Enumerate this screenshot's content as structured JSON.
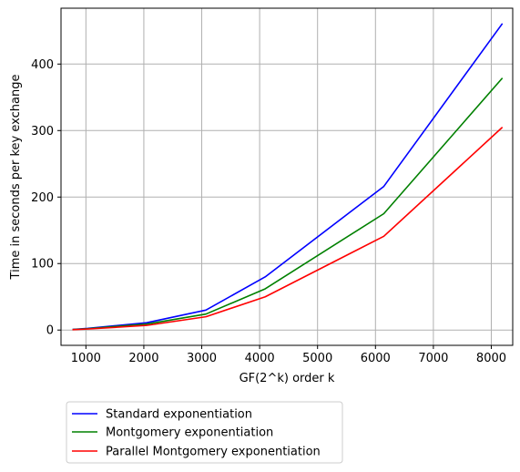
{
  "chart_data": {
    "type": "line",
    "title": "",
    "xlabel": "GF(2^k) order k",
    "ylabel": "Time in seconds per key exchange",
    "xlim": [
      570,
      8370
    ],
    "ylim": [
      -23,
      484
    ],
    "xticks": [
      1000,
      2000,
      3000,
      4000,
      5000,
      6000,
      7000,
      8000
    ],
    "yticks": [
      0,
      100,
      200,
      300,
      400
    ],
    "grid": true,
    "legend_placement": "below-left",
    "x": [
      768,
      1024,
      2048,
      3072,
      4096,
      6144,
      8192
    ],
    "series": [
      {
        "name": "Standard exponentiation",
        "color": "#0000ff",
        "values": [
          1,
          2.5,
          11,
          30,
          80,
          216,
          461
        ]
      },
      {
        "name": "Montgomery exponentiation",
        "color": "#008000",
        "values": [
          0.8,
          2,
          9,
          24,
          62,
          175,
          379
        ]
      },
      {
        "name": "Parallel Montgomery exponentiation",
        "color": "#ff0000",
        "values": [
          0.6,
          1.5,
          7,
          20,
          50,
          141,
          305
        ]
      }
    ]
  }
}
